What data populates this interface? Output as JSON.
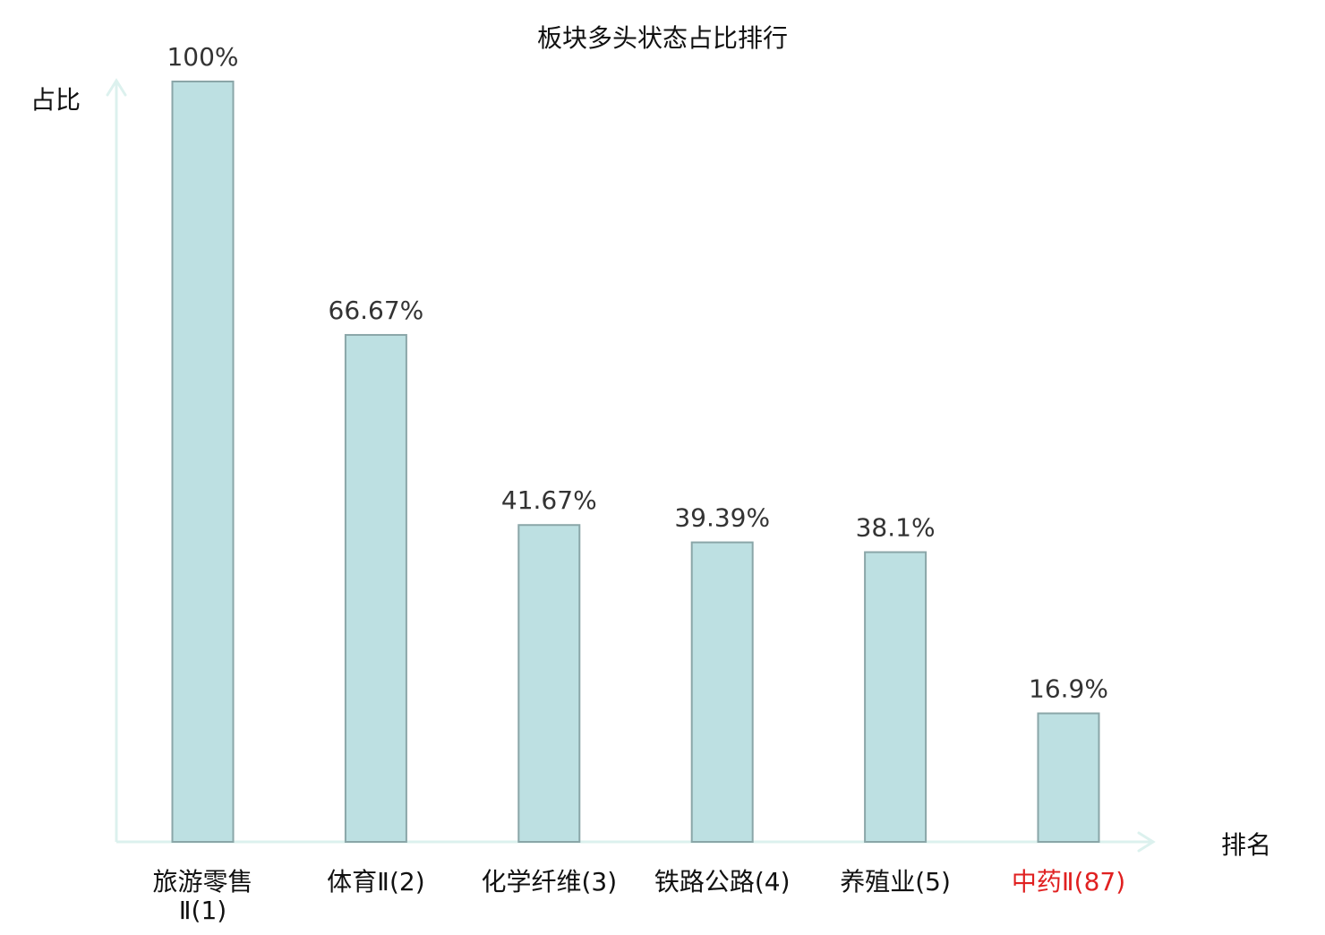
{
  "chart_data": {
    "type": "bar",
    "title": "板块多头状态占比排行",
    "ylabel": "占比",
    "xlabel": "排名",
    "ylim": [
      0,
      100
    ],
    "grid": false,
    "categories": [
      [
        "旅游零售",
        "Ⅱ(1)"
      ],
      [
        "体育Ⅱ(2)"
      ],
      [
        "化学纤维(3)"
      ],
      [
        "铁路公路(4)"
      ],
      [
        "养殖业(5)"
      ],
      [
        "中药Ⅱ(87)"
      ]
    ],
    "values": [
      100,
      66.67,
      41.67,
      39.39,
      38.1,
      16.9
    ],
    "value_labels": [
      "100%",
      "66.67%",
      "41.67%",
      "39.39%",
      "38.1%",
      "16.9%"
    ],
    "highlight_index": 5,
    "colors": {
      "bar_fill": "#bde0e2",
      "bar_stroke": "#8aa6a8",
      "axis": "#dcf1ee",
      "value_text": "#333333",
      "category_text": "#111111",
      "highlight_text": "#e02020",
      "title_text": "#111111"
    }
  }
}
